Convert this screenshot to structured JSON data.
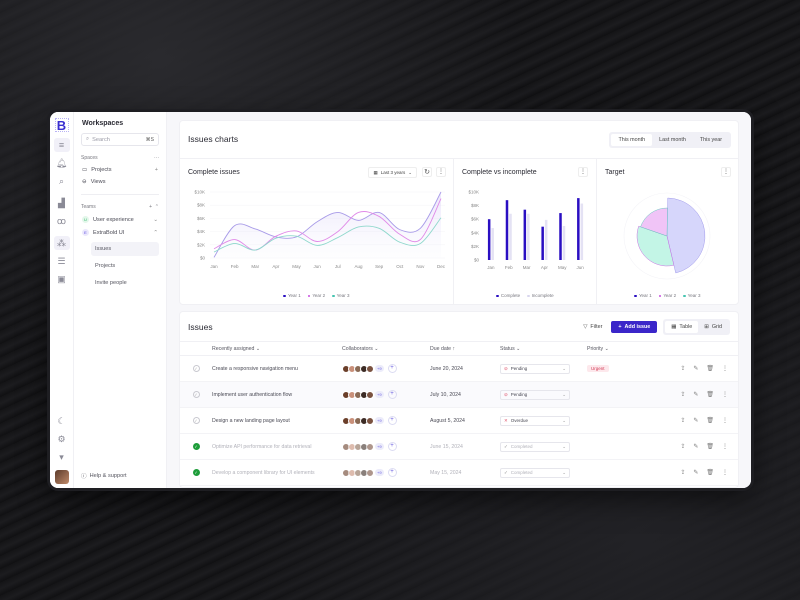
{
  "rail": {
    "logo": "B",
    "icons": [
      "menu-icon",
      "bell-icon",
      "search-icon",
      "bar-chart-icon",
      "users-icon",
      "workspace-icon",
      "list-icon",
      "calendar-icon"
    ],
    "bottom_icons": [
      "moon-icon",
      "gear-icon",
      "inbox-icon"
    ]
  },
  "sidebar": {
    "title": "Workspaces",
    "search": {
      "placeholder": "Search",
      "shortcut": "⌘S"
    },
    "spaces_label": "Spaces",
    "spaces": [
      {
        "label": "Projects"
      },
      {
        "label": "Views"
      }
    ],
    "teams_label": "Teams",
    "teams": [
      {
        "initial": "U",
        "label": "User experience",
        "color": "#2fb56a"
      },
      {
        "initial": "E",
        "label": "ExtraBold UI",
        "color": "#5b4ae0"
      }
    ],
    "sub_items": [
      {
        "label": "Issues"
      },
      {
        "label": "Projects"
      },
      {
        "label": "Invite people"
      }
    ],
    "help": "Help & support"
  },
  "header": {
    "title": "Issues charts",
    "periods": [
      {
        "label": "This month",
        "active": true
      },
      {
        "label": "Last month"
      },
      {
        "label": "This year"
      }
    ]
  },
  "charts": {
    "complete": {
      "title": "Complete issues",
      "range": "Last 3 years"
    },
    "cvi": {
      "title": "Complete vs incomplete"
    },
    "target": {
      "title": "Target"
    }
  },
  "chart_data": [
    {
      "type": "line",
      "title": "Complete issues",
      "categories": [
        "Jan",
        "Feb",
        "Mar",
        "Apr",
        "May",
        "Jun",
        "Jul",
        "Aug",
        "Sep",
        "Oct",
        "Nov",
        "Dec"
      ],
      "yticks": [
        "$10K",
        "$8K",
        "$6K",
        "$4K",
        "$2K",
        "$0"
      ],
      "ylim": [
        0,
        10000
      ],
      "series": [
        {
          "name": "Year 1",
          "color": "#a89be8",
          "values": [
            100,
            4900,
            4400,
            3200,
            3200,
            5500,
            6900,
            5700,
            6900,
            4300,
            4500,
            10000
          ]
        },
        {
          "name": "Year 2",
          "color": "#e08ae8",
          "values": [
            1400,
            2800,
            1200,
            3300,
            4100,
            2500,
            4000,
            6900,
            6300,
            3600,
            2800,
            9000
          ]
        },
        {
          "name": "Year 3",
          "color": "#8fd8cc",
          "values": [
            900,
            2200,
            1200,
            3000,
            3300,
            1900,
            3100,
            4700,
            4500,
            2400,
            2200,
            6100
          ]
        }
      ],
      "legend": [
        "Year 1",
        "Year 2",
        "Year 3"
      ]
    },
    {
      "type": "bar",
      "title": "Complete vs incomplete",
      "categories": [
        "Jan",
        "Feb",
        "Mar",
        "Apr",
        "May",
        "Jun"
      ],
      "yticks": [
        "$10K",
        "$8K",
        "$6K",
        "$4K",
        "$2K",
        "$0"
      ],
      "ylim": [
        0,
        10000
      ],
      "series": [
        {
          "name": "Complete",
          "color": "#2a0fc2",
          "values": [
            6000,
            8800,
            7400,
            4900,
            6900,
            9100
          ]
        },
        {
          "name": "Incomplete",
          "color": "#e4e2f4",
          "values": [
            4700,
            6800,
            6800,
            5900,
            5000,
            8300
          ]
        }
      ],
      "legend": [
        "Complete",
        "Incomplete"
      ]
    },
    {
      "type": "pie",
      "title": "Target",
      "series": [
        {
          "name": "Year 1",
          "color": "#d6d6fb",
          "value": 46
        },
        {
          "name": "Year 2",
          "color": "#f0c4f7",
          "value": 20
        },
        {
          "name": "Year 3",
          "color": "#c3f5e6",
          "value": 34
        }
      ],
      "legend": [
        "Year 1",
        "Year 2",
        "Year 3"
      ]
    }
  ],
  "issues": {
    "title": "Issues",
    "filter": "Filter",
    "add": "Add issue",
    "views": [
      {
        "label": "Table",
        "active": true
      },
      {
        "label": "Grid"
      }
    ],
    "columns": [
      "Recently assigned",
      "Collaborators",
      "Due date",
      "Status",
      "Priority"
    ],
    "rows": [
      {
        "task": "Create a responsive navigation menu",
        "more": "+9",
        "due": "June 20, 2024",
        "status": "Pending",
        "priority": "Urgent",
        "done": false
      },
      {
        "task": "Implement user authentication flow",
        "more": "+9",
        "due": "July 10, 2024",
        "status": "Pending",
        "priority": "",
        "done": false
      },
      {
        "task": "Design a new landing page layout",
        "more": "+9",
        "due": "August 5, 2024",
        "status": "Overdue",
        "priority": "",
        "done": false
      },
      {
        "task": "Optimize API performance for data retrieval",
        "more": "+9",
        "due": "June 15, 2024",
        "status": "Completed",
        "priority": "",
        "done": true
      },
      {
        "task": "Develop a component library for UI elements",
        "more": "+9",
        "due": "May 15, 2024",
        "status": "Completed",
        "priority": "",
        "done": true
      }
    ]
  }
}
